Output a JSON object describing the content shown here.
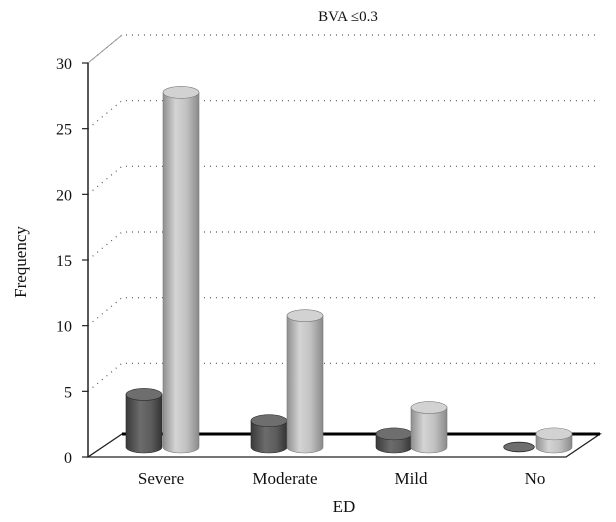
{
  "chart_data": {
    "type": "bar",
    "title": "BVA ≤0.3",
    "xlabel": "ED",
    "ylabel": "Frequency",
    "ylim": [
      0,
      30
    ],
    "yticks": [
      0,
      5,
      10,
      15,
      20,
      25,
      30
    ],
    "grid": true,
    "style": "3d-cylinder",
    "categories": [
      "Severe",
      "Moderate",
      "Mild",
      "No"
    ],
    "series": [
      {
        "values": [
          4,
          2,
          1,
          0
        ],
        "color": "#5a5a5a"
      },
      {
        "values": [
          27,
          10,
          3,
          1
        ],
        "color": "#b5b5b5"
      }
    ]
  }
}
